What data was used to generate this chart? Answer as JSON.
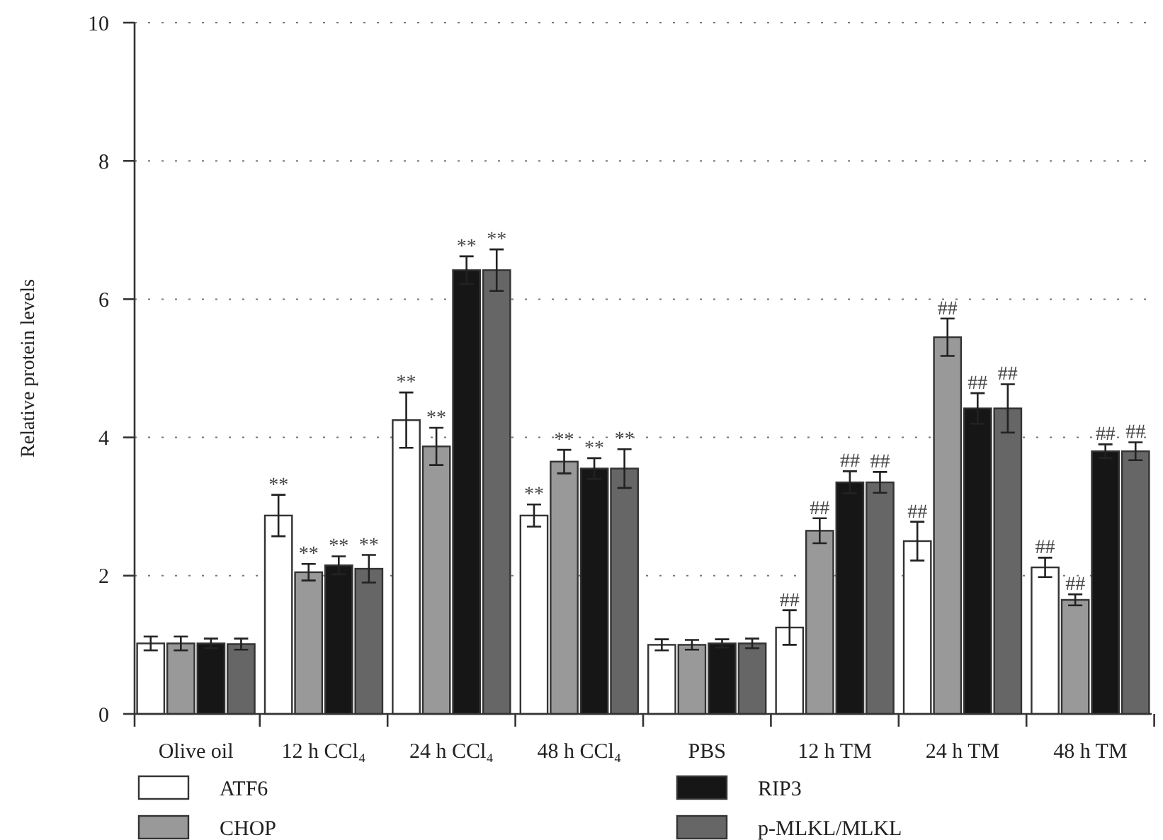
{
  "chart_data": {
    "type": "bar",
    "ylabel": "Relative protein levels",
    "categories": [
      "Olive oil",
      "12 h CCl₄",
      "24 h CCl₄",
      "48 h CCl₄",
      "PBS",
      "12 h TM",
      "24 h TM",
      "48 h TM"
    ],
    "ylim": [
      0,
      10
    ],
    "yticks": [
      0,
      2,
      4,
      6,
      8,
      10
    ],
    "grid": "y",
    "legend": "bottom",
    "series": [
      {
        "name": "ATF6",
        "color": "#ffffff",
        "values": [
          1.02,
          2.87,
          4.25,
          2.87,
          1.0,
          1.25,
          2.5,
          2.12
        ],
        "errors": [
          0.1,
          0.3,
          0.4,
          0.16,
          0.08,
          0.25,
          0.28,
          0.14
        ],
        "value_labels": [
          null,
          "**",
          "**",
          "**",
          null,
          "##",
          "##",
          "##"
        ]
      },
      {
        "name": "CHOP",
        "color": "#999999",
        "values": [
          1.02,
          2.05,
          3.87,
          3.65,
          1.0,
          2.65,
          5.45,
          1.65
        ],
        "errors": [
          0.1,
          0.12,
          0.27,
          0.17,
          0.07,
          0.18,
          0.27,
          0.08
        ],
        "value_labels": [
          null,
          "**",
          "**",
          "**",
          null,
          "##",
          "##",
          "##"
        ]
      },
      {
        "name": "RIP3",
        "color": "#161616",
        "values": [
          1.02,
          2.15,
          6.42,
          3.55,
          1.02,
          3.35,
          4.42,
          3.8
        ],
        "errors": [
          0.07,
          0.13,
          0.2,
          0.15,
          0.06,
          0.16,
          0.22,
          0.1
        ],
        "value_labels": [
          null,
          "**",
          "**",
          "**",
          null,
          "##",
          "##",
          "##"
        ]
      },
      {
        "name": "p-MLKL/MLKL",
        "color": "#666666",
        "values": [
          1.01,
          2.1,
          6.42,
          3.55,
          1.02,
          3.35,
          4.42,
          3.8
        ],
        "errors": [
          0.08,
          0.2,
          0.3,
          0.28,
          0.07,
          0.15,
          0.35,
          0.13
        ],
        "value_labels": [
          null,
          "**",
          "**",
          "**",
          null,
          "##",
          "##",
          "##"
        ]
      }
    ]
  }
}
